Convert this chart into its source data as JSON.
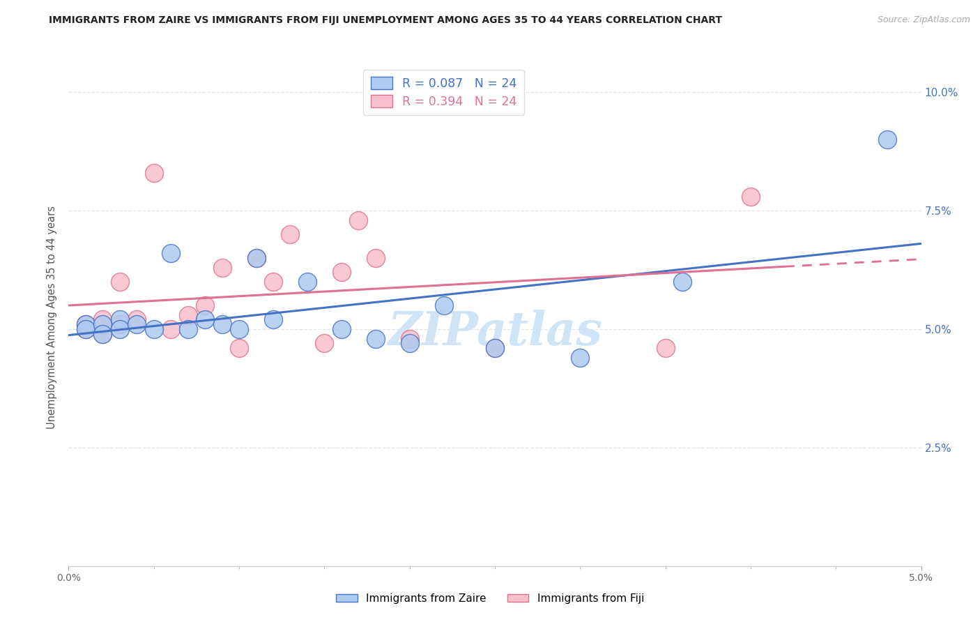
{
  "title": "IMMIGRANTS FROM ZAIRE VS IMMIGRANTS FROM FIJI UNEMPLOYMENT AMONG AGES 35 TO 44 YEARS CORRELATION CHART",
  "source": "Source: ZipAtlas.com",
  "ylabel": "Unemployment Among Ages 35 to 44 years",
  "right_yticks": [
    "10.0%",
    "7.5%",
    "5.0%",
    "2.5%"
  ],
  "right_ytick_vals": [
    0.1,
    0.075,
    0.05,
    0.025
  ],
  "legend_zaire": "Immigrants from Zaire",
  "legend_fiji": "Immigrants from Fiji",
  "R_zaire": "R = 0.087",
  "N_zaire": "N = 24",
  "R_fiji": "R = 0.394",
  "N_fiji": "N = 24",
  "color_zaire": "#aecbf0",
  "color_fiji": "#f8c0cc",
  "line_color_zaire": "#4472c4",
  "line_color_fiji": "#e07090",
  "zaire_x": [
    0.001,
    0.001,
    0.002,
    0.002,
    0.003,
    0.003,
    0.004,
    0.005,
    0.006,
    0.007,
    0.008,
    0.009,
    0.01,
    0.011,
    0.012,
    0.014,
    0.016,
    0.018,
    0.02,
    0.022,
    0.025,
    0.03,
    0.036,
    0.048
  ],
  "zaire_y": [
    0.051,
    0.05,
    0.051,
    0.049,
    0.052,
    0.05,
    0.051,
    0.05,
    0.066,
    0.05,
    0.052,
    0.051,
    0.05,
    0.065,
    0.052,
    0.06,
    0.05,
    0.048,
    0.047,
    0.055,
    0.046,
    0.044,
    0.06,
    0.09
  ],
  "fiji_x": [
    0.001,
    0.001,
    0.002,
    0.002,
    0.003,
    0.003,
    0.004,
    0.005,
    0.006,
    0.007,
    0.008,
    0.009,
    0.01,
    0.011,
    0.012,
    0.013,
    0.015,
    0.016,
    0.017,
    0.018,
    0.02,
    0.025,
    0.035,
    0.04
  ],
  "fiji_y": [
    0.051,
    0.05,
    0.052,
    0.049,
    0.06,
    0.051,
    0.052,
    0.083,
    0.05,
    0.053,
    0.055,
    0.063,
    0.046,
    0.065,
    0.06,
    0.07,
    0.047,
    0.062,
    0.073,
    0.065,
    0.048,
    0.046,
    0.046,
    0.078
  ],
  "xlim": [
    0.0,
    0.05
  ],
  "ylim": [
    0.0,
    0.105
  ],
  "watermark": "ZIPatlas",
  "watermark_color": "#d0e4f8",
  "background_color": "#ffffff",
  "grid_color": "#dde6ee"
}
